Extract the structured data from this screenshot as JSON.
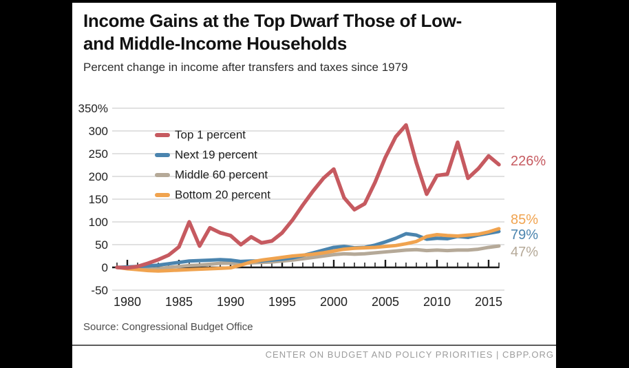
{
  "frame": {
    "background": "#000000",
    "card_background": "#ffffff"
  },
  "header": {
    "title_line1": "Income Gains at the Top Dwarf Those of Low-",
    "title_line2": "and Middle-Income Households",
    "subtitle": "Percent change in income after transfers and taxes since 1979"
  },
  "chart_data": {
    "type": "line",
    "title": "Income Gains at the Top Dwarf Those of Low- and Middle-Income Households",
    "subtitle": "Percent change in income after transfers and taxes since 1979",
    "xlabel": "",
    "ylabel": "Percent change in income after transfers and taxes since 1979",
    "grid": true,
    "legend_position": "top-left",
    "ylim": [
      -50,
      350
    ],
    "ytick_values": [
      350,
      300,
      250,
      200,
      150,
      100,
      50,
      0,
      -50
    ],
    "ytick_labels": [
      "350%",
      "300",
      "250",
      "200",
      "150",
      "100",
      "50",
      "0",
      "-50"
    ],
    "xtick_values": [
      1980,
      1985,
      1990,
      1995,
      2000,
      2005,
      2010,
      2015
    ],
    "xtick_labels": [
      "1980",
      "1985",
      "1990",
      "1995",
      "2000",
      "2005",
      "2010",
      "2015"
    ],
    "x": [
      1979,
      1980,
      1981,
      1982,
      1983,
      1984,
      1985,
      1986,
      1987,
      1988,
      1989,
      1990,
      1991,
      1992,
      1993,
      1994,
      1995,
      1996,
      1997,
      1998,
      1999,
      2000,
      2001,
      2002,
      2003,
      2004,
      2005,
      2006,
      2007,
      2008,
      2009,
      2010,
      2011,
      2012,
      2013,
      2014,
      2015,
      2016
    ],
    "series": [
      {
        "name": "Top 1 percent",
        "color": "#c65a60",
        "end_label": "226%",
        "values": [
          0,
          -1,
          2,
          9,
          17,
          27,
          45,
          100,
          47,
          87,
          76,
          70,
          50,
          67,
          54,
          58,
          76,
          104,
          137,
          168,
          196,
          216,
          153,
          127,
          140,
          187,
          242,
          287,
          313,
          230,
          161,
          202,
          205,
          275,
          196,
          217,
          245,
          226
        ]
      },
      {
        "name": "Next 19 percent",
        "color": "#4a84ae",
        "end_label": "79%",
        "values": [
          0,
          1,
          2,
          3,
          5,
          8,
          11,
          14,
          15,
          16,
          17,
          16,
          13,
          14,
          14,
          16,
          18,
          21,
          26,
          32,
          38,
          44,
          46,
          43,
          44,
          49,
          56,
          64,
          74,
          71,
          62,
          64,
          63,
          68,
          66,
          71,
          75,
          79
        ]
      },
      {
        "name": "Middle 60 percent",
        "color": "#b5a998",
        "end_label": "47%",
        "values": [
          0,
          -1,
          -3,
          -4,
          -3,
          0,
          2,
          4,
          5,
          7,
          9,
          9,
          8,
          10,
          11,
          12,
          14,
          16,
          19,
          22,
          25,
          28,
          30,
          29,
          30,
          32,
          34,
          36,
          38,
          39,
          37,
          38,
          37,
          38,
          38,
          40,
          44,
          47
        ]
      },
      {
        "name": "Bottom 20 percent",
        "color": "#f0a34f",
        "end_label": "85%",
        "values": [
          0,
          -3,
          -5,
          -7,
          -8,
          -7,
          -6,
          -5,
          -4,
          -3,
          -2,
          -1,
          5,
          12,
          16,
          19,
          22,
          25,
          27,
          29,
          32,
          36,
          40,
          42,
          43,
          44,
          46,
          48,
          52,
          57,
          68,
          72,
          70,
          69,
          71,
          73,
          78,
          85
        ]
      }
    ]
  },
  "source": {
    "label": "Source: Congressional Budget Office"
  },
  "footer": {
    "label": "CENTER ON BUDGET AND POLICY PRIORITIES | CBPP.ORG"
  }
}
